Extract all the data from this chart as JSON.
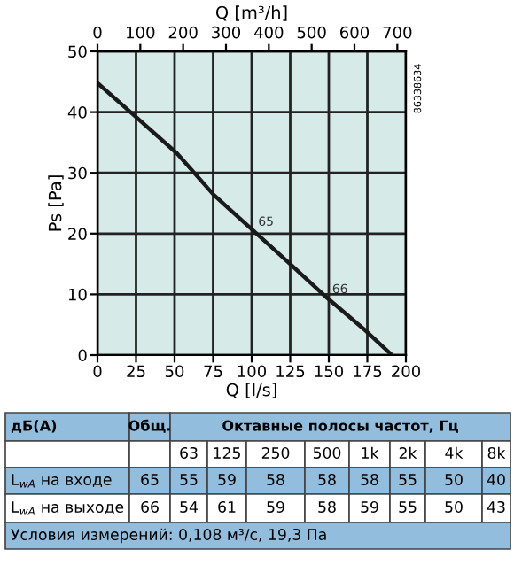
{
  "chart_data": {
    "type": "line",
    "xlabel": "Q [l/s]",
    "ylabel": "Ps [Pa]",
    "x2label": "Q [m³/h]",
    "xlim": [
      0,
      200
    ],
    "xticks": [
      0,
      25,
      50,
      75,
      100,
      125,
      150,
      175,
      200
    ],
    "ylim": [
      0,
      50
    ],
    "yticks": [
      0,
      10,
      20,
      30,
      40,
      50
    ],
    "x2lim": [
      0,
      720
    ],
    "x2ticks": [
      0,
      100,
      200,
      300,
      400,
      500,
      600,
      700
    ],
    "grid": true,
    "legend": false,
    "marker": "none",
    "line_style": "solid",
    "series": [
      {
        "color": "#1a1a1a",
        "x": [
          0,
          25,
          51.6,
          75.3,
          101,
          124,
          149,
          174,
          191
        ],
        "values": [
          44.8,
          39.2,
          33.2,
          26.4,
          20.5,
          15.2,
          9.4,
          4.0,
          0
        ]
      }
    ],
    "annotations": [
      {
        "text": "65",
        "x": 101,
        "y": 20.5
      },
      {
        "text": "66",
        "x": 149,
        "y": 9.4
      },
      "86338634",
      "дБ(А)",
      "Общ.",
      "Октавные полосы частот, Гц",
      "63",
      "125",
      "250",
      "500",
      "1k",
      "2k",
      "4k",
      "8k",
      "L$_{wA}$ на входе",
      "65",
      "55",
      "59",
      "58",
      "58",
      "58",
      "55",
      "50",
      "40",
      "L$_{wA}$ на выходе",
      "66",
      "54",
      "61",
      "59",
      "58",
      "59",
      "55",
      "50",
      "43",
      "Условия измерений: 0,108 м³/с, 19,3 Па"
    ]
  }
}
